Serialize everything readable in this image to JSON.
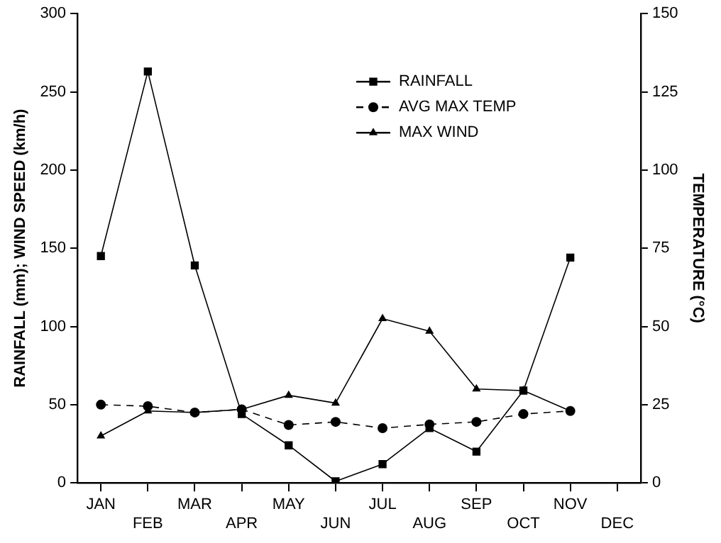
{
  "chart_data": {
    "type": "line",
    "xlabel": null,
    "ylabel": "RAINFALL (mm); WIND SPEED (km/h)",
    "y2label": "TEMPERATURE (°C)",
    "categories": [
      "JAN",
      "FEB",
      "MAR",
      "APR",
      "MAY",
      "JUN",
      "JUL",
      "AUG",
      "SEP",
      "OCT",
      "NOV",
      "DEC"
    ],
    "series": [
      {
        "name": "RAINFALL",
        "color": "#000000",
        "marker": "square",
        "line_style": "solid",
        "values": [
          145,
          263,
          139,
          44,
          24,
          1,
          12,
          35,
          20,
          59,
          144,
          null
        ]
      },
      {
        "name": "AVG MAX TEMP",
        "color": "#000000",
        "marker": "circle",
        "line_style": "dashed",
        "axis": "y2",
        "values": [
          25,
          24.5,
          22.5,
          23.5,
          18.5,
          19.5,
          17.5,
          18.7,
          19.5,
          22,
          23,
          null
        ]
      },
      {
        "name": "MAX WIND",
        "color": "#000000",
        "marker": "triangle",
        "line_style": "solid",
        "values": [
          30,
          46,
          45,
          47,
          56,
          51,
          105,
          97,
          60,
          59,
          46,
          null
        ]
      }
    ],
    "ylim": [
      0,
      300
    ],
    "yticks": [
      0,
      50,
      100,
      150,
      200,
      250,
      300
    ],
    "y2lim": [
      0,
      150
    ],
    "y2ticks": [
      0,
      25,
      50,
      75,
      100,
      125,
      150
    ],
    "grid": false,
    "legend": "top"
  }
}
